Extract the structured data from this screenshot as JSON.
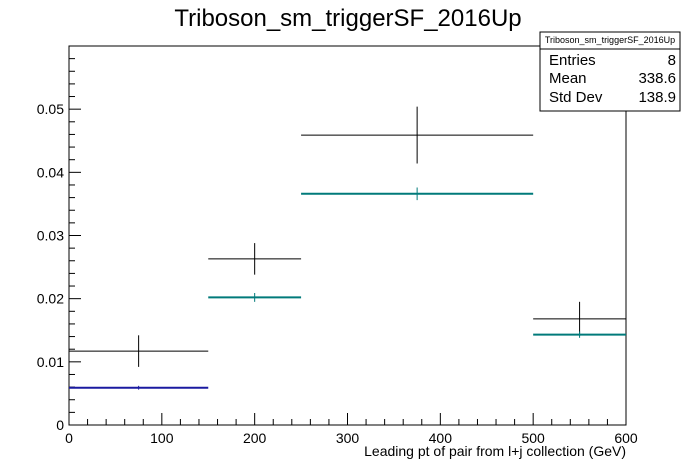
{
  "chart_data": {
    "type": "histogram",
    "title": "Triboson_sm_triggerSF_2016Up",
    "xlabel": "Leading pt of pair from l+j collection (GeV)",
    "ylabel": "",
    "xlim": [
      0,
      600
    ],
    "ylim": [
      0,
      0.06
    ],
    "x_ticks": [
      "0",
      "100",
      "200",
      "300",
      "400",
      "500",
      "600"
    ],
    "y_ticks": [
      "0",
      "0.01",
      "0.02",
      "0.03",
      "0.04",
      "0.05"
    ],
    "grid": false,
    "series": [
      {
        "color": "#000000",
        "bins": [
          {
            "x_low": 0,
            "x_high": 150,
            "x_center": 75,
            "y": 0.0117,
            "y_err": 0.0025
          },
          {
            "x_low": 150,
            "x_high": 250,
            "x_center": 200,
            "y": 0.0263,
            "y_err": 0.0025
          },
          {
            "x_low": 250,
            "x_high": 500,
            "x_center": 375,
            "y": 0.0459,
            "y_err": 0.0045
          },
          {
            "x_low": 500,
            "x_high": 600,
            "x_center": 550,
            "y": 0.0168,
            "y_err": 0.0027
          }
        ]
      },
      {
        "color": "#007a7a",
        "bins": [
          {
            "x_low": 0,
            "x_high": 150,
            "x_center": 75,
            "y": 0.0059,
            "y_err": 0.0003,
            "color": "#1a1aa0"
          },
          {
            "x_low": 150,
            "x_high": 250,
            "x_center": 200,
            "y": 0.0202,
            "y_err": 0.0007
          },
          {
            "x_low": 250,
            "x_high": 500,
            "x_center": 375,
            "y": 0.0366,
            "y_err": 0.001
          },
          {
            "x_low": 500,
            "x_high": 600,
            "x_center": 550,
            "y": 0.0143,
            "y_err": 0.0005
          }
        ]
      }
    ],
    "stats_box": {
      "title": "Triboson_sm_triggerSF_2016Up",
      "rows": [
        {
          "label": "Entries",
          "value": "8"
        },
        {
          "label": "Mean",
          "value": "338.6"
        },
        {
          "label": "Std Dev",
          "value": "138.9"
        }
      ]
    }
  }
}
